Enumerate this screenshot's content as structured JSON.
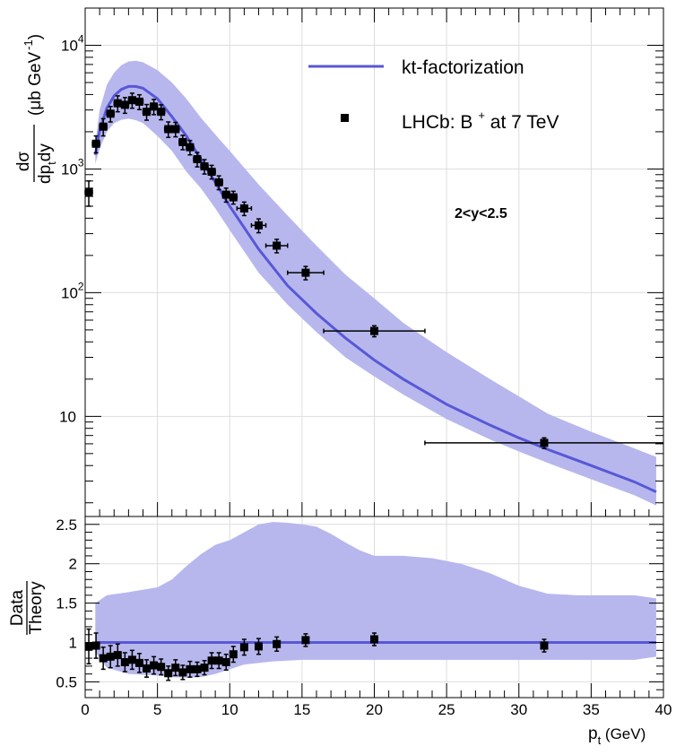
{
  "chart_data": [
    {
      "type": "line",
      "panel": "top",
      "ylabel": "dσ / dp_t dy (μb GeV⁻¹)",
      "ylabel_parts": {
        "numerator": "dσ",
        "denominator": "dp",
        "subscript": "t",
        "denominator_tail": "dy",
        "unit_open": "(μb GeV",
        "unit_exp": "-1",
        "unit_close": ")"
      },
      "yscale": "log",
      "xlim": [
        0,
        40
      ],
      "ylim": [
        1.55,
        20000
      ],
      "grid": true,
      "legend_position": "top-right",
      "yticks": [
        {
          "value": 10,
          "label": "10"
        },
        {
          "value": 100,
          "label": "10",
          "exp": "2"
        },
        {
          "value": 1000,
          "label": "10",
          "exp": "3"
        },
        {
          "value": 10000,
          "label": "10",
          "exp": "4"
        }
      ],
      "annotation": "2<y<2.5",
      "series": [
        {
          "name": "kt-factorization",
          "kind": "line",
          "color": "#5858d6",
          "x": [
            0.7,
            1.0,
            1.5,
            2.0,
            2.5,
            3.0,
            3.5,
            4.0,
            5.0,
            6.0,
            7.0,
            8.0,
            9.0,
            10.0,
            12.0,
            14.0,
            16.0,
            18.0,
            20.0,
            22.0,
            25.0,
            28.0,
            30.0,
            32.0,
            35.0,
            38.0,
            39.5
          ],
          "y": [
            1300,
            2050,
            3100,
            3900,
            4400,
            4650,
            4650,
            4500,
            3700,
            2650,
            1850,
            1200,
            780,
            500,
            225,
            114,
            68,
            43,
            28.5,
            20,
            12.5,
            8.5,
            6.7,
            5.4,
            4.0,
            2.95,
            2.45
          ]
        },
        {
          "name": "",
          "kind": "band",
          "color": "#b7b7ee",
          "x": [
            0.7,
            1.0,
            1.5,
            2.0,
            2.5,
            3.0,
            3.5,
            4.0,
            5.0,
            6.0,
            7.0,
            8.0,
            9.0,
            10.0,
            12.0,
            14.0,
            16.0,
            18.0,
            20.0,
            22.0,
            25.0,
            28.0,
            30.0,
            32.0,
            35.0,
            38.0,
            39.5
          ],
          "y_low": [
            1100,
            1450,
            2000,
            2350,
            2500,
            2550,
            2480,
            2350,
            1850,
            1400,
            950,
            700,
            480,
            320,
            145,
            80,
            48,
            30,
            21,
            15,
            9.5,
            6.5,
            5.2,
            4.2,
            3.1,
            2.3,
            1.9
          ],
          "y_high": [
            1600,
            3000,
            4800,
            6000,
            6900,
            7400,
            7500,
            7300,
            6300,
            5000,
            3700,
            2600,
            1900,
            1400,
            750,
            420,
            240,
            140,
            90,
            57,
            33,
            20,
            14.5,
            10.5,
            7.5,
            5.5,
            4.7
          ]
        },
        {
          "name": "LHCb: B ⁺ at 7 TeV",
          "name_parts": {
            "prefix": "LHCb: B",
            "sup": "+",
            "suffix": " at 7 TeV"
          },
          "kind": "points",
          "color": "#000000",
          "x": [
            0.25,
            0.75,
            1.25,
            1.75,
            2.25,
            2.75,
            3.25,
            3.75,
            4.25,
            4.75,
            5.25,
            5.75,
            6.25,
            6.75,
            7.25,
            7.75,
            8.25,
            8.75,
            9.25,
            9.75,
            10.25,
            11.0,
            12.0,
            13.25,
            15.25,
            20.0,
            31.75
          ],
          "y": [
            650,
            1600,
            2200,
            2800,
            3400,
            3300,
            3600,
            3500,
            2900,
            3200,
            2900,
            2100,
            2100,
            1650,
            1500,
            1200,
            1050,
            950,
            780,
            620,
            590,
            480,
            350,
            240,
            145,
            49,
            6.1
          ],
          "x_err": [
            0.25,
            0.25,
            0.25,
            0.25,
            0.25,
            0.25,
            0.25,
            0.25,
            0.25,
            0.25,
            0.25,
            0.25,
            0.25,
            0.25,
            0.25,
            0.25,
            0.25,
            0.25,
            0.25,
            0.25,
            0.25,
            0.5,
            0.5,
            0.75,
            1.25,
            3.5,
            8.25
          ],
          "y_err_low": [
            150,
            250,
            350,
            400,
            500,
            480,
            500,
            480,
            420,
            450,
            400,
            300,
            280,
            220,
            200,
            160,
            140,
            120,
            100,
            80,
            70,
            60,
            45,
            30,
            18,
            5,
            0.6
          ],
          "y_err_high": [
            150,
            250,
            350,
            400,
            500,
            480,
            500,
            480,
            420,
            450,
            400,
            300,
            280,
            220,
            200,
            160,
            140,
            120,
            100,
            80,
            70,
            60,
            45,
            30,
            18,
            5,
            0.6
          ]
        }
      ]
    },
    {
      "type": "line",
      "panel": "bottom",
      "ylabel_numerator": "Data",
      "ylabel_denominator": "Theory",
      "xlabel_main": "p",
      "xlabel_sub": "t",
      "xlabel_unit": " (GeV)",
      "xlim": [
        0,
        40
      ],
      "ylim": [
        0.3,
        2.6
      ],
      "grid": true,
      "xticks": [
        0,
        5,
        10,
        15,
        20,
        25,
        30,
        35,
        40
      ],
      "yticks": [
        0.5,
        1,
        1.5,
        2,
        2.5
      ],
      "series": [
        {
          "name": "",
          "kind": "line",
          "color": "#5858d6",
          "x": [
            0.7,
            39.5
          ],
          "y": [
            1.0,
            1.0
          ]
        },
        {
          "name": "",
          "kind": "band",
          "color": "#b7b7ee",
          "x": [
            0.7,
            1.5,
            3,
            5,
            6,
            7,
            8,
            9,
            10,
            11,
            12,
            13,
            14,
            15,
            16,
            17,
            18,
            19,
            20,
            22,
            24,
            26,
            28,
            30,
            32,
            34,
            36,
            38,
            39.5
          ],
          "y_low": [
            0.88,
            0.68,
            0.6,
            0.58,
            0.56,
            0.55,
            0.56,
            0.6,
            0.66,
            0.72,
            0.74,
            0.76,
            0.77,
            0.78,
            0.78,
            0.78,
            0.78,
            0.78,
            0.78,
            0.78,
            0.78,
            0.78,
            0.78,
            0.78,
            0.78,
            0.78,
            0.78,
            0.78,
            0.82
          ],
          "y_high": [
            1.5,
            1.6,
            1.64,
            1.7,
            1.8,
            1.97,
            2.12,
            2.24,
            2.3,
            2.4,
            2.5,
            2.53,
            2.52,
            2.5,
            2.47,
            2.38,
            2.27,
            2.17,
            2.1,
            2.1,
            2.07,
            2.0,
            1.88,
            1.72,
            1.62,
            1.6,
            1.6,
            1.6,
            1.56
          ]
        },
        {
          "name": "",
          "kind": "points",
          "color": "#000000",
          "x": [
            0.25,
            0.75,
            1.25,
            1.75,
            2.25,
            2.75,
            3.25,
            3.75,
            4.25,
            4.75,
            5.25,
            5.75,
            6.25,
            6.75,
            7.25,
            7.75,
            8.25,
            8.75,
            9.25,
            9.75,
            10.25,
            11.0,
            12.0,
            13.25,
            15.25,
            20.0,
            31.75
          ],
          "y": [
            0.95,
            0.96,
            0.8,
            0.82,
            0.84,
            0.75,
            0.78,
            0.74,
            0.67,
            0.71,
            0.69,
            0.61,
            0.68,
            0.62,
            0.66,
            0.66,
            0.68,
            0.77,
            0.77,
            0.75,
            0.85,
            0.94,
            0.95,
            0.98,
            1.03,
            1.04,
            0.96
          ],
          "y_err_low": [
            0.22,
            0.16,
            0.14,
            0.14,
            0.14,
            0.12,
            0.12,
            0.12,
            0.11,
            0.11,
            0.1,
            0.09,
            0.1,
            0.09,
            0.1,
            0.09,
            0.09,
            0.1,
            0.1,
            0.1,
            0.1,
            0.1,
            0.1,
            0.09,
            0.08,
            0.08,
            0.08
          ],
          "y_err_high": [
            0.22,
            0.16,
            0.14,
            0.14,
            0.14,
            0.12,
            0.12,
            0.12,
            0.11,
            0.11,
            0.1,
            0.09,
            0.1,
            0.09,
            0.1,
            0.09,
            0.09,
            0.1,
            0.1,
            0.1,
            0.1,
            0.1,
            0.1,
            0.09,
            0.08,
            0.08,
            0.08
          ]
        }
      ]
    }
  ]
}
